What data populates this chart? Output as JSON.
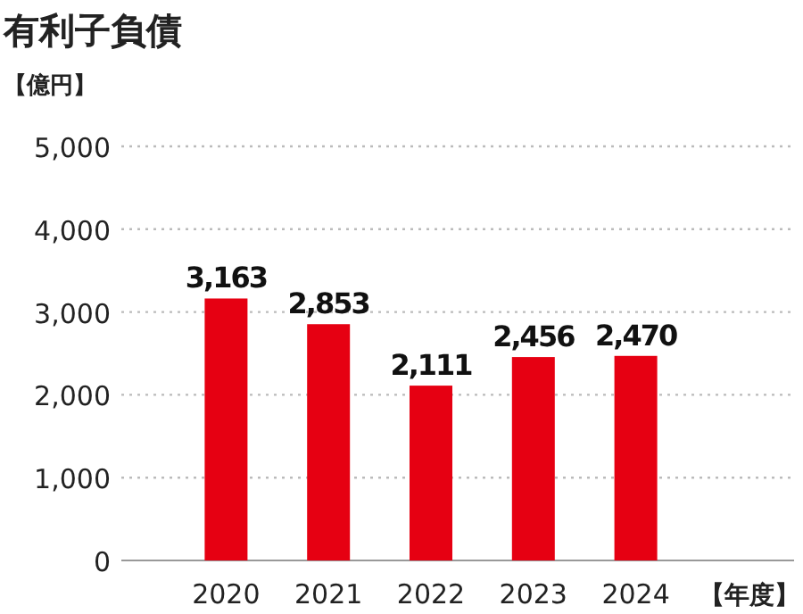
{
  "chart_data": {
    "type": "bar",
    "title": "有利子負債",
    "ylabel": "【億円】",
    "xlabel": "【年度】",
    "categories": [
      "2020",
      "2021",
      "2022",
      "2023",
      "2024"
    ],
    "values": [
      3163,
      2853,
      2111,
      2456,
      2470
    ],
    "value_labels": [
      "3,163",
      "2,853",
      "2,111",
      "2,456",
      "2,470"
    ],
    "color": "#e60012",
    "ylim": [
      0,
      5000
    ],
    "yticks": [
      {
        "value": 0,
        "label": "0"
      },
      {
        "value": 1000,
        "label": "1,000"
      },
      {
        "value": 2000,
        "label": "2,000"
      },
      {
        "value": 3000,
        "label": "3,000"
      },
      {
        "value": 4000,
        "label": "4,000"
      },
      {
        "value": 5000,
        "label": "5,000"
      }
    ],
    "grid": "y"
  }
}
